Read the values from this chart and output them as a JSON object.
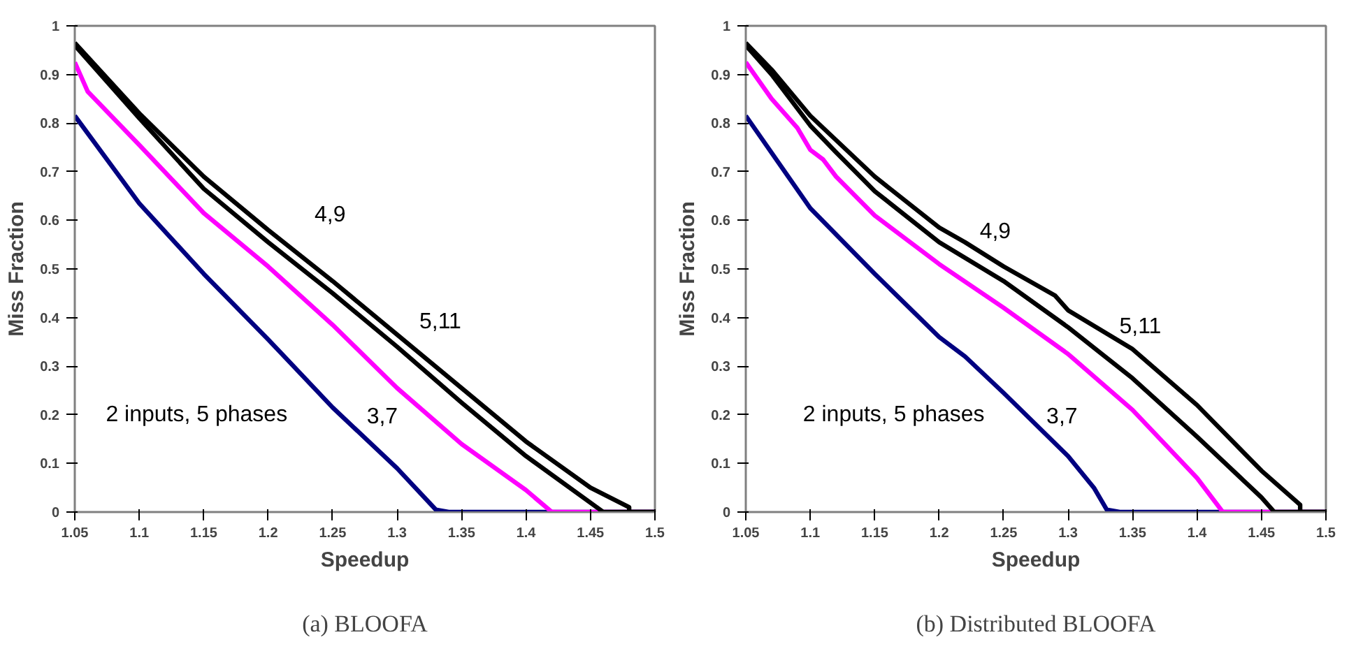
{
  "chart_data": [
    {
      "type": "line",
      "title": "(a) BLOOFA",
      "xlabel": "Speedup",
      "ylabel": "Miss Fraction",
      "xlim": [
        1.05,
        1.5
      ],
      "ylim": [
        0,
        1
      ],
      "xticks": [
        1.05,
        1.1,
        1.15,
        1.2,
        1.25,
        1.3,
        1.35,
        1.4,
        1.45,
        1.5
      ],
      "yticks": [
        0,
        0.1,
        0.2,
        0.3,
        0.4,
        0.5,
        0.6,
        0.7,
        0.8,
        0.9,
        1
      ],
      "grid": false,
      "marker": "none",
      "line_style": "solid",
      "series": [
        {
          "color": "#000080",
          "x": [
            1.05,
            1.1,
            1.15,
            1.2,
            1.25,
            1.3,
            1.33,
            1.34,
            1.5
          ],
          "values": [
            0.815,
            0.635,
            0.49,
            0.355,
            0.215,
            0.09,
            0.005,
            0,
            0
          ]
        },
        {
          "color": "#ff00ff",
          "x": [
            1.05,
            1.06,
            1.1,
            1.15,
            1.2,
            1.25,
            1.3,
            1.35,
            1.4,
            1.42,
            1.5
          ],
          "values": [
            0.925,
            0.865,
            0.755,
            0.615,
            0.505,
            0.385,
            0.255,
            0.14,
            0.045,
            0,
            0
          ]
        },
        {
          "color": "#000000",
          "x": [
            1.05,
            1.1,
            1.15,
            1.2,
            1.25,
            1.3,
            1.35,
            1.4,
            1.46,
            1.5
          ],
          "values": [
            0.96,
            0.81,
            0.665,
            0.555,
            0.45,
            0.34,
            0.225,
            0.115,
            0,
            0
          ]
        },
        {
          "color": "#000000",
          "x": [
            1.05,
            1.1,
            1.15,
            1.2,
            1.25,
            1.3,
            1.35,
            1.4,
            1.45,
            1.48,
            1.48,
            1.5
          ],
          "values": [
            0.965,
            0.82,
            0.69,
            0.58,
            0.475,
            0.365,
            0.255,
            0.145,
            0.05,
            0.01,
            0,
            0
          ]
        }
      ],
      "annotations": [
        "4,9",
        "5,11",
        "3,7",
        "2 inputs, 5 phases"
      ]
    },
    {
      "type": "line",
      "title": "(b) Distributed BLOOFA",
      "xlabel": "Speedup",
      "ylabel": "Miss Fraction",
      "xlim": [
        1.05,
        1.5
      ],
      "ylim": [
        0,
        1
      ],
      "xticks": [
        1.05,
        1.1,
        1.15,
        1.2,
        1.25,
        1.3,
        1.35,
        1.4,
        1.45,
        1.5
      ],
      "yticks": [
        0,
        0.1,
        0.2,
        0.3,
        0.4,
        0.5,
        0.6,
        0.7,
        0.8,
        0.9,
        1
      ],
      "grid": false,
      "marker": "none",
      "line_style": "solid",
      "series": [
        {
          "color": "#000080",
          "x": [
            1.05,
            1.1,
            1.15,
            1.2,
            1.22,
            1.25,
            1.3,
            1.32,
            1.33,
            1.34,
            1.5
          ],
          "values": [
            0.815,
            0.625,
            0.49,
            0.36,
            0.32,
            0.245,
            0.115,
            0.05,
            0.005,
            0,
            0
          ]
        },
        {
          "color": "#ff00ff",
          "x": [
            1.05,
            1.07,
            1.09,
            1.1,
            1.11,
            1.12,
            1.15,
            1.2,
            1.25,
            1.3,
            1.35,
            1.4,
            1.42,
            1.5
          ],
          "values": [
            0.925,
            0.85,
            0.79,
            0.745,
            0.725,
            0.69,
            0.61,
            0.51,
            0.42,
            0.325,
            0.21,
            0.07,
            0,
            0
          ]
        },
        {
          "color": "#000000",
          "x": [
            1.05,
            1.07,
            1.1,
            1.12,
            1.15,
            1.2,
            1.25,
            1.3,
            1.35,
            1.4,
            1.45,
            1.46,
            1.5
          ],
          "values": [
            0.96,
            0.9,
            0.795,
            0.74,
            0.66,
            0.555,
            0.475,
            0.38,
            0.275,
            0.155,
            0.03,
            0,
            0
          ]
        },
        {
          "color": "#000000",
          "x": [
            1.05,
            1.07,
            1.1,
            1.15,
            1.2,
            1.22,
            1.25,
            1.29,
            1.3,
            1.35,
            1.4,
            1.45,
            1.48,
            1.48,
            1.5
          ],
          "values": [
            0.965,
            0.91,
            0.815,
            0.69,
            0.585,
            0.555,
            0.505,
            0.445,
            0.415,
            0.335,
            0.22,
            0.085,
            0.015,
            0,
            0
          ]
        }
      ],
      "annotations": [
        "4,9",
        "5,11",
        "3,7",
        "2 inputs, 5 phases"
      ]
    }
  ]
}
